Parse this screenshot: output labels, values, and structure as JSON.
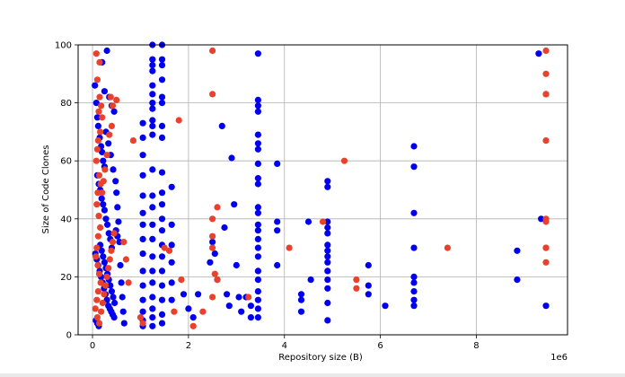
{
  "chart_data": {
    "type": "scatter",
    "title": "",
    "xlabel": "Repository size (B)",
    "ylabel": "Size of Code Clones",
    "x_offset_label": "1e6",
    "xlim": [
      -300000,
      9900000
    ],
    "ylim": [
      0,
      100
    ],
    "x_ticks": [
      0,
      2000000,
      4000000,
      6000000,
      8000000
    ],
    "x_tick_labels": [
      "0",
      "2",
      "4",
      "6",
      "8"
    ],
    "y_ticks": [
      0,
      20,
      40,
      60,
      80,
      100
    ],
    "y_tick_labels": [
      "0",
      "20",
      "40",
      "60",
      "80",
      "100"
    ],
    "grid": true,
    "legend": "none",
    "series": [
      {
        "color": "#0000ee",
        "points": [
          [
            50000,
            86
          ],
          [
            80000,
            80
          ],
          [
            100000,
            75
          ],
          [
            120000,
            72
          ],
          [
            150000,
            68
          ],
          [
            180000,
            65
          ],
          [
            200000,
            63
          ],
          [
            220000,
            60
          ],
          [
            250000,
            58
          ],
          [
            100000,
            55
          ],
          [
            130000,
            52
          ],
          [
            160000,
            50
          ],
          [
            190000,
            47
          ],
          [
            220000,
            45
          ],
          [
            250000,
            43
          ],
          [
            280000,
            40
          ],
          [
            310000,
            38
          ],
          [
            340000,
            35
          ],
          [
            370000,
            33
          ],
          [
            400000,
            30
          ],
          [
            60000,
            28
          ],
          [
            90000,
            26
          ],
          [
            120000,
            24
          ],
          [
            150000,
            22
          ],
          [
            180000,
            20
          ],
          [
            210000,
            18
          ],
          [
            240000,
            16
          ],
          [
            270000,
            14
          ],
          [
            300000,
            12
          ],
          [
            330000,
            10
          ],
          [
            360000,
            9
          ],
          [
            390000,
            8
          ],
          [
            420000,
            7
          ],
          [
            450000,
            6
          ],
          [
            70000,
            5
          ],
          [
            100000,
            4
          ],
          [
            130000,
            3
          ],
          [
            160000,
            31
          ],
          [
            190000,
            29
          ],
          [
            220000,
            27
          ],
          [
            250000,
            25
          ],
          [
            280000,
            23
          ],
          [
            310000,
            21
          ],
          [
            340000,
            19
          ],
          [
            370000,
            17
          ],
          [
            400000,
            15
          ],
          [
            430000,
            13
          ],
          [
            460000,
            11
          ],
          [
            490000,
            36
          ],
          [
            520000,
            34
          ],
          [
            300000,
            98
          ],
          [
            250000,
            84
          ],
          [
            350000,
            82
          ],
          [
            400000,
            79
          ],
          [
            450000,
            77
          ],
          [
            280000,
            70
          ],
          [
            330000,
            66
          ],
          [
            380000,
            62
          ],
          [
            430000,
            57
          ],
          [
            480000,
            53
          ],
          [
            500000,
            49
          ],
          [
            520000,
            44
          ],
          [
            540000,
            39
          ],
          [
            560000,
            32
          ],
          [
            580000,
            24
          ],
          [
            600000,
            18
          ],
          [
            620000,
            13
          ],
          [
            640000,
            8
          ],
          [
            660000,
            4
          ],
          [
            200000,
            94
          ],
          [
            1050000,
            73
          ],
          [
            1050000,
            68
          ],
          [
            1050000,
            62
          ],
          [
            1050000,
            55
          ],
          [
            1050000,
            48
          ],
          [
            1050000,
            42
          ],
          [
            1050000,
            38
          ],
          [
            1050000,
            33
          ],
          [
            1050000,
            28
          ],
          [
            1050000,
            22
          ],
          [
            1050000,
            17
          ],
          [
            1050000,
            12
          ],
          [
            1050000,
            8
          ],
          [
            1050000,
            5
          ],
          [
            1050000,
            3
          ],
          [
            1250000,
            100
          ],
          [
            1250000,
            95
          ],
          [
            1250000,
            93
          ],
          [
            1250000,
            91
          ],
          [
            1250000,
            86
          ],
          [
            1250000,
            83
          ],
          [
            1250000,
            80
          ],
          [
            1250000,
            78
          ],
          [
            1250000,
            74
          ],
          [
            1250000,
            72
          ],
          [
            1250000,
            69
          ],
          [
            1250000,
            57
          ],
          [
            1250000,
            48
          ],
          [
            1250000,
            44
          ],
          [
            1250000,
            38
          ],
          [
            1250000,
            33
          ],
          [
            1250000,
            27
          ],
          [
            1250000,
            22
          ],
          [
            1250000,
            18
          ],
          [
            1250000,
            13
          ],
          [
            1250000,
            9
          ],
          [
            1250000,
            6
          ],
          [
            1250000,
            3
          ],
          [
            1450000,
            100
          ],
          [
            1450000,
            95
          ],
          [
            1450000,
            93
          ],
          [
            1450000,
            88
          ],
          [
            1450000,
            82
          ],
          [
            1450000,
            80
          ],
          [
            1450000,
            72
          ],
          [
            1450000,
            68
          ],
          [
            1450000,
            56
          ],
          [
            1450000,
            49
          ],
          [
            1450000,
            45
          ],
          [
            1450000,
            40
          ],
          [
            1450000,
            36
          ],
          [
            1450000,
            31
          ],
          [
            1450000,
            27
          ],
          [
            1450000,
            22
          ],
          [
            1450000,
            17
          ],
          [
            1450000,
            12
          ],
          [
            1450000,
            7
          ],
          [
            1450000,
            4
          ],
          [
            1650000,
            51
          ],
          [
            1650000,
            38
          ],
          [
            1650000,
            31
          ],
          [
            1650000,
            25
          ],
          [
            1650000,
            18
          ],
          [
            1650000,
            12
          ],
          [
            1900000,
            14
          ],
          [
            2000000,
            9
          ],
          [
            2100000,
            6
          ],
          [
            2200000,
            14
          ],
          [
            2450000,
            25
          ],
          [
            2500000,
            32
          ],
          [
            2550000,
            28
          ],
          [
            2600000,
            19
          ],
          [
            2700000,
            72
          ],
          [
            2750000,
            37
          ],
          [
            2800000,
            14
          ],
          [
            2850000,
            10
          ],
          [
            2900000,
            61
          ],
          [
            2950000,
            45
          ],
          [
            3000000,
            24
          ],
          [
            3050000,
            13
          ],
          [
            3100000,
            8
          ],
          [
            3200000,
            13
          ],
          [
            3300000,
            6
          ],
          [
            3300000,
            10
          ],
          [
            3450000,
            97
          ],
          [
            3450000,
            81
          ],
          [
            3450000,
            79
          ],
          [
            3450000,
            77
          ],
          [
            3450000,
            69
          ],
          [
            3450000,
            66
          ],
          [
            3450000,
            64
          ],
          [
            3450000,
            59
          ],
          [
            3450000,
            54
          ],
          [
            3450000,
            52
          ],
          [
            3450000,
            44
          ],
          [
            3450000,
            42
          ],
          [
            3450000,
            38
          ],
          [
            3450000,
            36
          ],
          [
            3450000,
            33
          ],
          [
            3450000,
            30
          ],
          [
            3450000,
            27
          ],
          [
            3450000,
            22
          ],
          [
            3450000,
            19
          ],
          [
            3450000,
            15
          ],
          [
            3450000,
            12
          ],
          [
            3450000,
            9
          ],
          [
            3450000,
            6
          ],
          [
            3850000,
            59
          ],
          [
            3850000,
            39
          ],
          [
            3850000,
            36
          ],
          [
            3850000,
            24
          ],
          [
            4350000,
            14
          ],
          [
            4350000,
            12
          ],
          [
            4350000,
            8
          ],
          [
            4500000,
            39
          ],
          [
            4550000,
            19
          ],
          [
            4900000,
            53
          ],
          [
            4900000,
            51
          ],
          [
            4900000,
            39
          ],
          [
            4900000,
            37
          ],
          [
            4900000,
            35
          ],
          [
            4900000,
            31
          ],
          [
            4900000,
            29
          ],
          [
            4900000,
            27
          ],
          [
            4900000,
            25
          ],
          [
            4900000,
            22
          ],
          [
            4900000,
            19
          ],
          [
            4900000,
            16
          ],
          [
            4900000,
            11
          ],
          [
            4900000,
            5
          ],
          [
            5750000,
            24
          ],
          [
            5750000,
            17
          ],
          [
            5750000,
            14
          ],
          [
            6100000,
            10
          ],
          [
            6700000,
            65
          ],
          [
            6700000,
            58
          ],
          [
            6700000,
            42
          ],
          [
            6700000,
            30
          ],
          [
            6700000,
            20
          ],
          [
            6700000,
            18
          ],
          [
            6700000,
            15
          ],
          [
            6700000,
            12
          ],
          [
            6700000,
            10
          ],
          [
            8850000,
            29
          ],
          [
            8850000,
            19
          ],
          [
            9300000,
            97
          ],
          [
            9350000,
            40
          ],
          [
            9450000,
            10
          ]
        ]
      },
      {
        "color": "#e8412c",
        "points": [
          [
            80000,
            97
          ],
          [
            150000,
            94
          ],
          [
            100000,
            88
          ],
          [
            150000,
            82
          ],
          [
            180000,
            79
          ],
          [
            130000,
            77
          ],
          [
            200000,
            75
          ],
          [
            160000,
            70
          ],
          [
            120000,
            67
          ],
          [
            100000,
            64
          ],
          [
            80000,
            60
          ],
          [
            140000,
            55
          ],
          [
            170000,
            52
          ],
          [
            110000,
            49
          ],
          [
            90000,
            45
          ],
          [
            130000,
            41
          ],
          [
            160000,
            37
          ],
          [
            120000,
            34
          ],
          [
            90000,
            30
          ],
          [
            70000,
            27
          ],
          [
            110000,
            24
          ],
          [
            140000,
            21
          ],
          [
            170000,
            18
          ],
          [
            120000,
            15
          ],
          [
            90000,
            12
          ],
          [
            60000,
            9
          ],
          [
            100000,
            6
          ],
          [
            140000,
            4
          ],
          [
            180000,
            8
          ],
          [
            210000,
            11
          ],
          [
            240000,
            14
          ],
          [
            270000,
            17
          ],
          [
            300000,
            20
          ],
          [
            330000,
            23
          ],
          [
            360000,
            26
          ],
          [
            390000,
            29
          ],
          [
            420000,
            32
          ],
          [
            450000,
            35
          ],
          [
            300000,
            62
          ],
          [
            260000,
            57
          ],
          [
            230000,
            53
          ],
          [
            200000,
            49
          ],
          [
            350000,
            69
          ],
          [
            400000,
            72
          ],
          [
            380000,
            82
          ],
          [
            420000,
            79
          ],
          [
            500000,
            81
          ],
          [
            650000,
            32
          ],
          [
            700000,
            26
          ],
          [
            750000,
            18
          ],
          [
            850000,
            67
          ],
          [
            1000000,
            6
          ],
          [
            1050000,
            4
          ],
          [
            1500000,
            30
          ],
          [
            1600000,
            29
          ],
          [
            1700000,
            8
          ],
          [
            1800000,
            74
          ],
          [
            1850000,
            19
          ],
          [
            2100000,
            3
          ],
          [
            2300000,
            8
          ],
          [
            2500000,
            98
          ],
          [
            2500000,
            83
          ],
          [
            2500000,
            40
          ],
          [
            2500000,
            34
          ],
          [
            2500000,
            30
          ],
          [
            2550000,
            21
          ],
          [
            2600000,
            44
          ],
          [
            2600000,
            19
          ],
          [
            2500000,
            13
          ],
          [
            3250000,
            13
          ],
          [
            4100000,
            30
          ],
          [
            4800000,
            39
          ],
          [
            5250000,
            60
          ],
          [
            5500000,
            19
          ],
          [
            5500000,
            16
          ],
          [
            7400000,
            30
          ],
          [
            9450000,
            98
          ],
          [
            9450000,
            90
          ],
          [
            9450000,
            83
          ],
          [
            9450000,
            83
          ],
          [
            9450000,
            67
          ],
          [
            9450000,
            40
          ],
          [
            9450000,
            39
          ],
          [
            9450000,
            30
          ],
          [
            9450000,
            30
          ],
          [
            9450000,
            25
          ]
        ]
      }
    ]
  }
}
